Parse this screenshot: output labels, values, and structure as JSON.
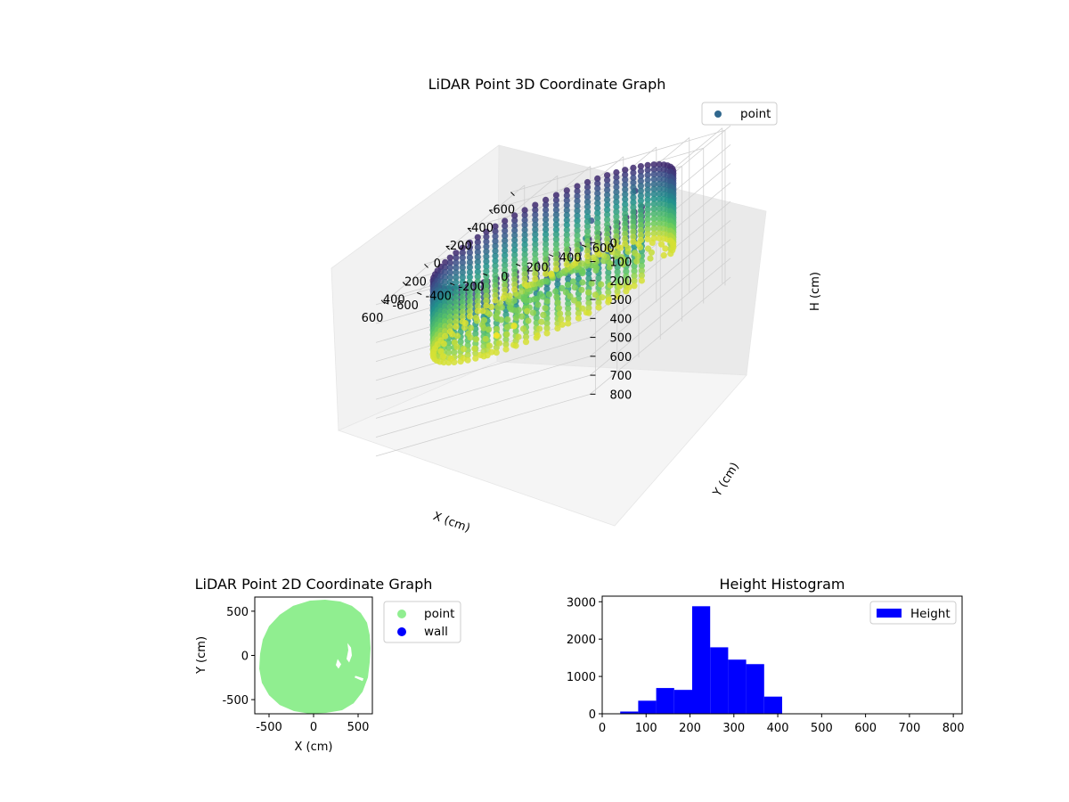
{
  "chart_data": [
    {
      "type": "scatter",
      "title": "LiDAR Point 3D Coordinate Graph",
      "xlabel": "X (cm)",
      "ylabel": "Y (cm)",
      "zlabel": "H (cm)",
      "xlim": [
        -650,
        650
      ],
      "ylim": [
        -650,
        650
      ],
      "zlim": [
        0,
        820
      ],
      "z_inverted": true,
      "x_ticks": [
        -600,
        -400,
        -200,
        0,
        200,
        400,
        600
      ],
      "y_ticks": [
        -600,
        -400,
        -200,
        0,
        200,
        400,
        600
      ],
      "z_ticks": [
        0,
        100,
        200,
        300,
        400,
        500,
        600,
        700,
        800
      ],
      "colormap": [
        "#440154",
        "#3b528b",
        "#21918c",
        "#5ec962",
        "#fde725"
      ],
      "grid": true,
      "legend": {
        "entries": [
          "point"
        ],
        "placement": "top-right",
        "color": "#31688e"
      },
      "series": [
        {
          "name": "point",
          "wall_ring": {
            "radius": 610,
            "h_range": [
              60,
              460
            ]
          },
          "cluster": [
            {
              "x": -170,
              "y": 120,
              "h": 140
            },
            {
              "x": -150,
              "y": 100,
              "h": 220
            },
            {
              "x": -130,
              "y": 80,
              "h": 260
            },
            {
              "x": -60,
              "y": 60,
              "h": 280
            },
            {
              "x": 30,
              "y": 40,
              "h": 300
            },
            {
              "x": 80,
              "y": 20,
              "h": 320
            },
            {
              "x": 150,
              "y": 20,
              "h": 350
            },
            {
              "x": 250,
              "y": 0,
              "h": 360
            },
            {
              "x": 300,
              "y": -20,
              "h": 380
            },
            {
              "x": 380,
              "y": -10,
              "h": 400
            },
            {
              "x": 120,
              "y": -80,
              "h": 430
            },
            {
              "x": 180,
              "y": -120,
              "h": 470
            },
            {
              "x": 220,
              "y": -200,
              "h": 480
            },
            {
              "x": -90,
              "y": -250,
              "h": 360
            },
            {
              "x": -300,
              "y": 300,
              "h": 90
            }
          ]
        }
      ]
    },
    {
      "type": "scatter",
      "title": "LiDAR Point 2D Coordinate Graph",
      "xlabel": "X (cm)",
      "ylabel": "Y (cm)",
      "xlim": [
        -660,
        660
      ],
      "ylim": [
        -660,
        660
      ],
      "x_ticks": [
        -500,
        0,
        500
      ],
      "y_ticks": [
        -500,
        0,
        500
      ],
      "legend": {
        "entries": [
          "point",
          "wall"
        ],
        "placement": "outside right",
        "colors": [
          "#90ee90",
          "#0000ff"
        ]
      },
      "series": [
        {
          "name": "point",
          "color": "#90ee90",
          "outline": [
            [
              130,
              630
            ],
            [
              300,
              610
            ],
            [
              430,
              560
            ],
            [
              530,
              480
            ],
            [
              600,
              370
            ],
            [
              630,
              230
            ],
            [
              640,
              80
            ],
            [
              630,
              -80
            ],
            [
              610,
              -250
            ],
            [
              550,
              -410
            ],
            [
              450,
              -540
            ],
            [
              320,
              -620
            ],
            [
              140,
              -650
            ],
            [
              -40,
              -660
            ],
            [
              -220,
              -630
            ],
            [
              -380,
              -560
            ],
            [
              -500,
              -450
            ],
            [
              -580,
              -310
            ],
            [
              -610,
              -150
            ],
            [
              -600,
              20
            ],
            [
              -570,
              180
            ],
            [
              -500,
              330
            ],
            [
              -380,
              460
            ],
            [
              -230,
              560
            ],
            [
              -40,
              620
            ]
          ],
          "gaps": [
            [
              [
                270,
                -40
              ],
              [
                310,
                -100
              ],
              [
                280,
                -150
              ],
              [
                250,
                -110
              ]
            ],
            [
              [
                380,
                140
              ],
              [
                420,
                90
              ],
              [
                430,
                0
              ],
              [
                400,
                -80
              ],
              [
                370,
                -40
              ],
              [
                390,
                60
              ]
            ],
            [
              [
                470,
                -230
              ],
              [
                560,
                -260
              ],
              [
                550,
                -290
              ],
              [
                460,
                -250
              ]
            ]
          ]
        },
        {
          "name": "wall",
          "color": "#0000ff"
        }
      ]
    },
    {
      "type": "bar",
      "title": "Height Histogram",
      "xlabel": "",
      "ylabel": "",
      "xlim": [
        0,
        820
      ],
      "ylim": [
        0,
        3150
      ],
      "x_ticks": [
        0,
        100,
        200,
        300,
        400,
        500,
        600,
        700,
        800
      ],
      "y_ticks": [
        0,
        1000,
        2000,
        3000
      ],
      "bin_width": 41,
      "color": "#0000ff",
      "legend": {
        "entries": [
          "Height"
        ],
        "placement": "top-right"
      },
      "series": [
        {
          "name": "Height",
          "bins": [
            0,
            41,
            82,
            123,
            164,
            205,
            246,
            287,
            328,
            369,
            410,
            451,
            492,
            533,
            574,
            615,
            656,
            697,
            738,
            779
          ],
          "values": [
            10,
            60,
            350,
            690,
            640,
            2880,
            1780,
            1450,
            1330,
            460,
            0,
            0,
            0,
            0,
            0,
            0,
            0,
            0,
            0,
            0
          ]
        }
      ]
    }
  ]
}
